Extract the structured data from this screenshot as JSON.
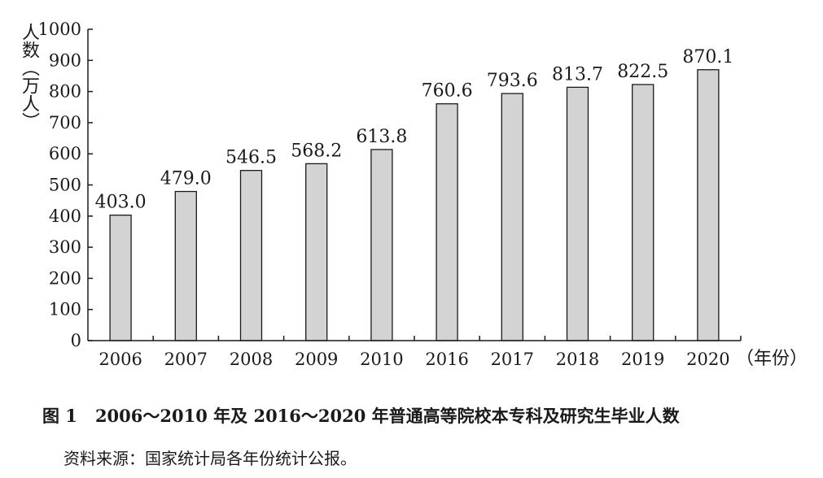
{
  "chart_data": {
    "type": "bar",
    "categories": [
      "2006",
      "2007",
      "2008",
      "2009",
      "2010",
      "2016",
      "2017",
      "2018",
      "2019",
      "2020"
    ],
    "values": [
      403.0,
      479.0,
      546.5,
      568.2,
      613.8,
      760.6,
      793.6,
      813.7,
      822.5,
      870.1
    ],
    "value_labels": [
      "403.0",
      "479.0",
      "546.5",
      "568.2",
      "613.8",
      "760.6",
      "793.6",
      "813.7",
      "822.5",
      "870.1"
    ],
    "ylabel": "人数（万人）",
    "xlabel": "（年份）",
    "ylim": [
      0,
      1000
    ],
    "yticks": [
      0,
      100,
      200,
      300,
      400,
      500,
      600,
      700,
      800,
      900,
      1000
    ],
    "bar_color": "#d3d3d3",
    "grid": false
  },
  "caption": {
    "number": "图 1",
    "text": "2006～2010 年及 2016～2020 年普通高等院校本专科及研究生毕业人数"
  },
  "source": "资料来源：国家统计局各年份统计公报。"
}
